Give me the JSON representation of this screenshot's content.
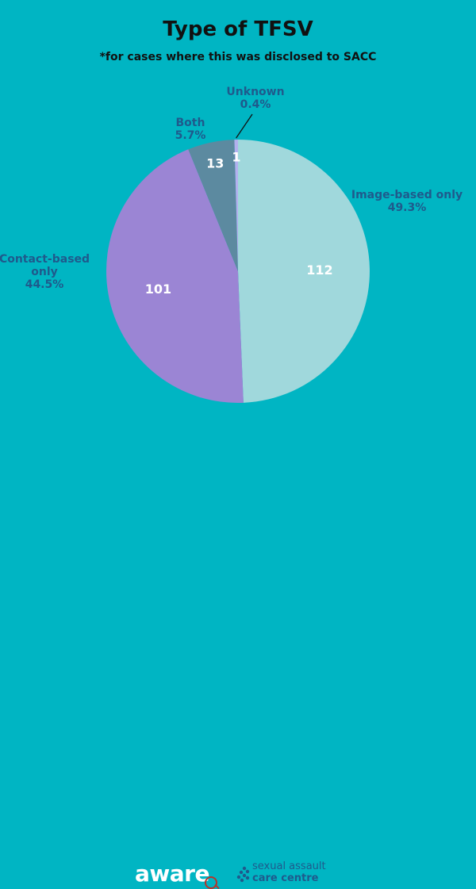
{
  "header": {
    "title": "Type of TFSV",
    "subtitle": "*for cases where this was disclosed to SACC"
  },
  "chart_data": {
    "type": "pie",
    "title": "Type of TFSV",
    "subtitle": "*for cases where this was disclosed to SACC",
    "slices": [
      {
        "name": "Image-based only",
        "value": 112,
        "percent": "49.3%",
        "color": "#a0d8dc",
        "label_lines": [
          "Image-based only",
          "49.3%"
        ]
      },
      {
        "name": "Contact-based only",
        "value": 101,
        "percent": "44.5%",
        "color": "#9b85d4",
        "label_lines": [
          "Contact-based",
          "only",
          "44.5%"
        ]
      },
      {
        "name": "Both",
        "value": 13,
        "percent": "5.7%",
        "color": "#5c8aa0",
        "label_lines": [
          "Both",
          "5.7%"
        ]
      },
      {
        "name": "Unknown",
        "value": 1,
        "percent": "0.4%",
        "color": "#b3b0ee",
        "label_lines": [
          "Unknown",
          "0.4%"
        ]
      }
    ],
    "start_angle_deg": 0,
    "direction": "clockwise",
    "leader_line_for": "Unknown"
  },
  "footer": {
    "logo_left": "aware",
    "logo_right_line1": "sexual assault",
    "logo_right_line2": "care centre",
    "logo_right_color": "#1f5a8c"
  }
}
